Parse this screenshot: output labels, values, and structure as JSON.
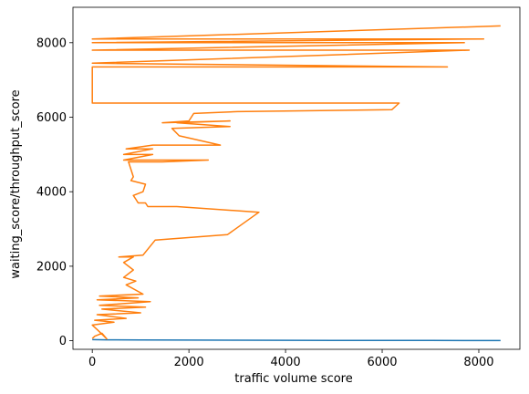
{
  "chart_data": {
    "type": "line",
    "title": "",
    "xlabel": "traffic volume score",
    "ylabel": "waiting_score/throughput_score",
    "xlim": [
      -400,
      8850
    ],
    "ylim": [
      -230,
      8950
    ],
    "xticks": [
      0,
      2000,
      4000,
      6000,
      8000
    ],
    "xtick_labels": [
      "0",
      "2000",
      "4000",
      "6000",
      "8000"
    ],
    "yticks": [
      0,
      2000,
      4000,
      6000,
      8000
    ],
    "ytick_labels": [
      "0",
      "2000",
      "4000",
      "6000",
      "8000"
    ],
    "grid": false,
    "legend": "none",
    "series": [
      {
        "color": "#1f77b4",
        "x": [
          0,
          300,
          1000,
          2000,
          3000,
          4000,
          5000,
          6000,
          7000,
          8000,
          8450
        ],
        "y": [
          30,
          25,
          22,
          18,
          15,
          12,
          10,
          8,
          7,
          5,
          5
        ]
      },
      {
        "color": "#ff7f0e",
        "x": [
          0,
          50,
          200,
          300,
          100,
          0,
          450,
          50,
          700,
          100,
          1000,
          200,
          1100,
          150,
          1200,
          100,
          950,
          150,
          1050,
          700,
          900,
          650,
          850,
          650,
          850,
          550,
          1050,
          1300,
          2800,
          3450,
          1750,
          1150,
          1100,
          950,
          900,
          850,
          1050,
          1100,
          800,
          850,
          750,
          1450,
          2400,
          650,
          1250,
          650,
          1250,
          700,
          1250,
          2650,
          1800,
          1650,
          2850,
          1750,
          2850,
          1450,
          2000,
          2100,
          3000,
          6200,
          6350,
          0,
          0,
          7350,
          0,
          7800,
          0,
          7700,
          0,
          8100,
          0,
          8450
        ],
        "y": [
          60,
          120,
          200,
          50,
          300,
          420,
          500,
          550,
          600,
          700,
          750,
          850,
          900,
          950,
          1050,
          1100,
          1150,
          1200,
          1250,
          1500,
          1600,
          1700,
          1900,
          2100,
          2250,
          2250,
          2300,
          2700,
          2850,
          3450,
          3600,
          3600,
          3700,
          3700,
          3800,
          3900,
          4000,
          4200,
          4300,
          4400,
          4800,
          4800,
          4850,
          4850,
          5000,
          5000,
          5150,
          5150,
          5250,
          5250,
          5500,
          5700,
          5750,
          5850,
          5900,
          5850,
          5900,
          6100,
          6150,
          6200,
          6380,
          6380,
          7350,
          7350,
          7450,
          7800,
          7800,
          8000,
          8000,
          8100,
          8100,
          8450
        ]
      }
    ]
  }
}
